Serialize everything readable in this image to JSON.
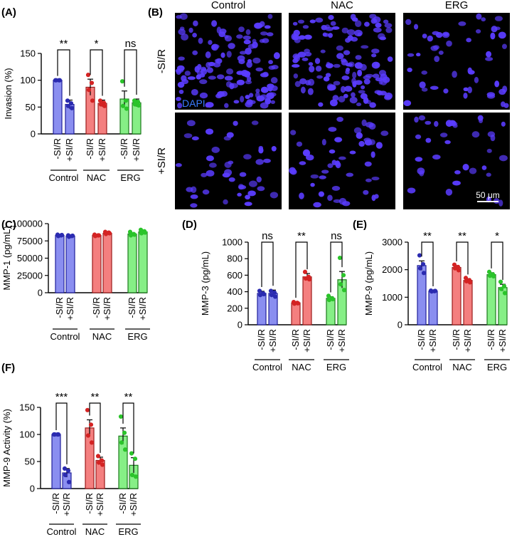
{
  "colors": {
    "control_fill": "#8a8ef0",
    "control_edge": "#1f1f9a",
    "control_point": "#2b2bb0",
    "nac_fill": "#f47f7f",
    "nac_edge": "#9b1c1c",
    "nac_point": "#d42323",
    "erg_fill": "#86ef86",
    "erg_edge": "#1c7a1c",
    "erg_point": "#2bc42b",
    "micro_bg": "#000000",
    "nuclei": "#5a3cff"
  },
  "conditions": [
    "-SI/R",
    "+SI/R"
  ],
  "groups": [
    "Control",
    "NAC",
    "ERG"
  ],
  "microscopy": {
    "label": "(B)",
    "columns": [
      "Control",
      "NAC",
      "ERG"
    ],
    "rows": [
      "-SI/R",
      "+SI/R"
    ],
    "stain": "DAPI",
    "scale_bar": "50 μm",
    "density": [
      [
        0.9,
        0.9,
        0.35
      ],
      [
        0.3,
        0.35,
        0.25
      ]
    ]
  },
  "chart_data": [
    {
      "id": "A",
      "label": "(A)",
      "type": "bar",
      "ylabel": "Invasion (%)",
      "ylim": [
        0,
        150
      ],
      "yticks": [
        0,
        50,
        100,
        150
      ],
      "groups": [
        "Control",
        "NAC",
        "ERG"
      ],
      "conditions": [
        "-SI/R",
        "+SI/R"
      ],
      "values": [
        [
          100,
          55
        ],
        [
          87,
          57
        ],
        [
          65,
          58
        ]
      ],
      "errors": [
        [
          0,
          8
        ],
        [
          15,
          6
        ],
        [
          15,
          7
        ]
      ],
      "points": [
        [
          [
            100,
            100,
            100,
            100
          ],
          [
            62,
            57,
            52,
            48
          ]
        ],
        [
          [
            110,
            95,
            82,
            62
          ],
          [
            62,
            58,
            55,
            52
          ]
        ],
        [
          [
            98,
            62,
            52,
            47
          ],
          [
            62,
            60,
            55,
            53
          ]
        ]
      ],
      "significance": [
        "**",
        "*",
        "ns"
      ]
    },
    {
      "id": "C",
      "label": "(C)",
      "type": "bar",
      "ylabel": "MMP-1 (pg/mL)",
      "ylim": [
        0,
        100000
      ],
      "yticks": [
        0,
        25000,
        50000,
        75000,
        100000
      ],
      "groups": [
        "Control",
        "NAC",
        "ERG"
      ],
      "conditions": [
        "-SI/R",
        "+SI/R"
      ],
      "values": [
        [
          83000,
          82000
        ],
        [
          83000,
          86000
        ],
        [
          85000,
          88000
        ]
      ],
      "errors": [
        [
          1000,
          1000
        ],
        [
          1000,
          1500
        ],
        [
          1500,
          2000
        ]
      ],
      "points": [
        [
          [
            84000,
            83000,
            82000,
            83500
          ],
          [
            83000,
            82000,
            81000,
            82500
          ]
        ],
        [
          [
            84000,
            83000,
            82000,
            83000
          ],
          [
            88000,
            87000,
            85000,
            86000
          ]
        ],
        [
          [
            88000,
            85000,
            83000,
            84000
          ],
          [
            91000,
            89000,
            86000,
            87000
          ]
        ]
      ],
      "significance": []
    },
    {
      "id": "D",
      "label": "(D)",
      "type": "bar",
      "ylabel": "MMP-3 (pg/mL)",
      "ylim": [
        0,
        1000
      ],
      "yticks": [
        0,
        200,
        400,
        600,
        800,
        1000
      ],
      "groups": [
        "Control",
        "NAC",
        "ERG"
      ],
      "conditions": [
        "-SI/R",
        "+SI/R"
      ],
      "values": [
        [
          380,
          380
        ],
        [
          265,
          580
        ],
        [
          320,
          545
        ]
      ],
      "errors": [
        [
          25,
          40
        ],
        [
          10,
          40
        ],
        [
          20,
          100
        ]
      ],
      "points": [
        [
          [
            410,
            380,
            360,
            370
          ],
          [
            410,
            390,
            360,
            340
          ]
        ],
        [
          [
            275,
            265,
            255,
            260
          ],
          [
            640,
            580,
            560,
            550
          ]
        ],
        [
          [
            350,
            320,
            300,
            310
          ],
          [
            810,
            600,
            490,
            420
          ]
        ]
      ],
      "significance": [
        "ns",
        "**",
        "ns"
      ]
    },
    {
      "id": "E",
      "label": "(E)",
      "type": "bar",
      "ylabel": "MMP-9 (pg/mL)",
      "ylim": [
        0,
        3000
      ],
      "yticks": [
        0,
        1000,
        2000,
        3000
      ],
      "groups": [
        "Control",
        "NAC",
        "ERG"
      ],
      "conditions": [
        "-SI/R",
        "+SI/R"
      ],
      "values": [
        [
          2150,
          1220
        ],
        [
          2080,
          1610
        ],
        [
          1820,
          1350
        ]
      ],
      "errors": [
        [
          170,
          20
        ],
        [
          70,
          60
        ],
        [
          70,
          120
        ]
      ],
      "points": [
        [
          [
            2520,
            2200,
            2050,
            1880
          ],
          [
            1240,
            1220,
            1210,
            1230
          ]
        ],
        [
          [
            2180,
            2100,
            2050,
            1980
          ],
          [
            1700,
            1620,
            1580,
            1540
          ]
        ],
        [
          [
            1920,
            1830,
            1780,
            1760
          ],
          [
            1560,
            1400,
            1300,
            1150
          ]
        ]
      ],
      "significance": [
        "**",
        "**",
        "*"
      ]
    },
    {
      "id": "F",
      "label": "(F)",
      "type": "bar",
      "ylabel": "MMP-9 Activity (%)",
      "ylim": [
        0,
        150
      ],
      "yticks": [
        0,
        50,
        100,
        150
      ],
      "groups": [
        "Control",
        "NAC",
        "ERG"
      ],
      "conditions": [
        "-SI/R",
        "+SI/R"
      ],
      "values": [
        [
          100,
          29
        ],
        [
          112,
          52
        ],
        [
          97,
          43
        ]
      ],
      "errors": [
        [
          0,
          8
        ],
        [
          15,
          6
        ],
        [
          15,
          14
        ]
      ],
      "points": [
        [
          [
            100,
            100,
            100,
            100
          ],
          [
            37,
            33,
            25,
            12
          ]
        ],
        [
          [
            145,
            118,
            98,
            85
          ],
          [
            60,
            52,
            48,
            44
          ]
        ],
        [
          [
            133,
            103,
            85,
            72
          ],
          [
            65,
            55,
            25,
            22
          ]
        ]
      ],
      "significance": [
        "***",
        "**",
        "**"
      ]
    }
  ]
}
